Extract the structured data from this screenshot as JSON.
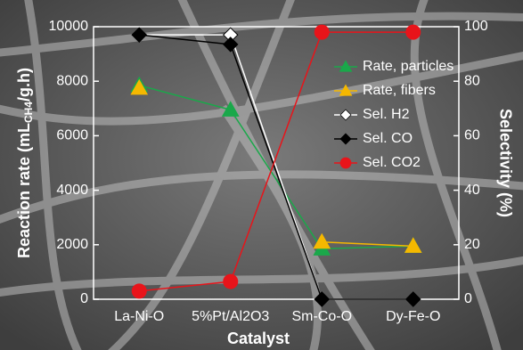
{
  "chart_data": {
    "type": "line",
    "categories": [
      "La-Ni-O",
      "5%Pt/Al2O3",
      "Sm-Co-O",
      "Dy-Fe-O"
    ],
    "x_label": "Catalyst",
    "y_label": {
      "text": "Reaction rate  (mL",
      "sub": "CH4",
      "after": "/g.h)"
    },
    "y2_label": "Selectivity  (%)",
    "ylim": [
      0,
      10000
    ],
    "yticks": [
      0,
      2000,
      4000,
      6000,
      8000,
      10000
    ],
    "y2lim": [
      0,
      100
    ],
    "y2ticks": [
      0,
      20,
      40,
      60,
      80,
      100
    ],
    "legend": "upper right",
    "series": [
      {
        "name": "Rate, particles",
        "color": "#1aa84a",
        "marker": "triangle",
        "values": [
          7850,
          6950,
          1850,
          1950
        ]
      },
      {
        "name": "Rate, fibers",
        "color": "#f5b800",
        "marker": "triangle",
        "values": [
          7750,
          null,
          2100,
          1950
        ]
      },
      {
        "name": "Sel. H2",
        "color": "#ffffff",
        "marker": "diamond",
        "axis": "y2",
        "values": [
          97,
          97,
          0,
          0
        ]
      },
      {
        "name": "Sel. CO",
        "color": "#000000",
        "marker": "diamond",
        "axis": "y2",
        "values": [
          97,
          93.5,
          0,
          0
        ]
      },
      {
        "name": "Sel. CO2",
        "color": "#e8141a",
        "marker": "circle",
        "axis": "y2",
        "values": [
          3,
          6.5,
          98,
          98
        ]
      }
    ]
  }
}
